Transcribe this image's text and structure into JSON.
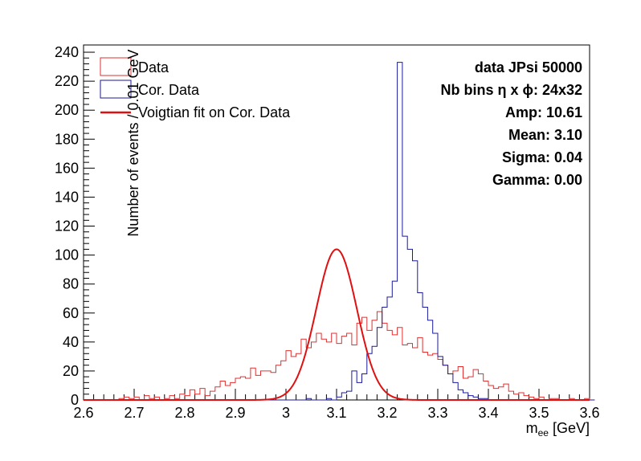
{
  "chart_data": {
    "type": "histogram",
    "xlabel_main": "m",
    "xlabel_sub": "ee",
    "xlabel_unit": " [GeV]",
    "ylabel": "Number of events / 0.01 GeV",
    "xlim": [
      2.6,
      3.6
    ],
    "ylim": [
      0,
      245
    ],
    "x_ticks": [
      "2.6",
      "2.7",
      "2.8",
      "2.9",
      "3",
      "3.1",
      "3.2",
      "3.3",
      "3.4",
      "3.5",
      "3.6"
    ],
    "y_ticks": [
      "0",
      "20",
      "40",
      "60",
      "80",
      "100",
      "120",
      "140",
      "160",
      "180",
      "200",
      "220",
      "240"
    ],
    "bin_width": 0.01,
    "bin_start": 2.6,
    "legend": [
      {
        "label": "Data",
        "color": "#e03030",
        "kind": "box"
      },
      {
        "label": "Cor. Data",
        "color": "#1a1a9a",
        "kind": "box"
      },
      {
        "label": "Voigtian fit on Cor. Data",
        "color": "#e01010",
        "kind": "line"
      }
    ],
    "stats": {
      "title": "data JPsi 50000",
      "bins_label": "Nb bins η x ϕ: 24x32",
      "amp": "Amp: 10.61",
      "mean": "Mean: 3.10",
      "sigma": "Sigma: 0.04",
      "gamma": "Gamma: 0.00"
    },
    "series": [
      {
        "name": "Data",
        "color": "#e03030",
        "values": [
          0,
          0,
          0,
          0,
          0,
          0,
          0,
          0,
          0,
          0,
          0,
          0,
          0,
          0,
          0,
          0,
          0,
          0,
          0,
          0,
          0,
          0,
          0,
          0,
          0,
          0,
          0,
          0,
          0,
          0,
          0,
          0,
          0,
          0,
          0,
          0,
          0,
          0,
          0,
          0,
          0,
          0,
          0,
          0,
          0,
          0,
          0,
          0,
          0,
          0,
          0,
          0,
          0,
          0,
          0,
          0,
          0,
          0,
          0,
          0,
          0,
          0,
          0,
          0,
          0,
          0,
          0,
          0,
          0,
          0,
          0,
          1,
          2,
          1,
          2,
          0,
          3,
          1,
          2,
          0,
          1,
          3,
          1,
          4,
          3,
          7,
          4,
          8,
          3,
          6,
          9,
          13,
          10,
          12,
          15,
          16,
          15,
          22,
          17,
          20,
          20,
          19,
          24,
          27,
          34,
          30,
          32,
          42,
          36,
          40,
          46,
          42,
          40,
          46,
          39,
          44,
          46,
          38,
          53,
          57,
          48,
          55,
          61,
          53,
          48,
          45,
          50,
          38,
          39,
          36,
          43,
          33,
          31,
          32,
          28,
          24,
          18,
          20,
          23,
          15,
          16,
          21,
          18,
          13,
          10,
          8,
          9,
          11,
          6,
          4,
          5,
          3,
          2,
          1,
          2,
          0,
          1,
          1,
          0,
          0,
          1,
          0,
          0,
          1,
          0,
          0,
          0,
          0,
          0,
          0,
          0,
          0,
          0,
          0,
          0,
          0,
          0,
          0,
          0,
          0,
          0,
          0,
          0,
          0,
          0,
          0,
          0,
          0,
          0,
          0,
          0,
          0,
          0,
          0,
          0,
          0,
          0,
          0,
          0,
          0,
          0,
          0,
          0,
          0,
          0,
          0,
          0,
          0,
          0,
          0,
          0,
          0,
          0,
          0,
          0,
          0,
          0,
          0,
          0,
          0
        ]
      },
      {
        "name": "Cor. Data",
        "color": "#1a1a9a",
        "values": [
          0,
          0,
          0,
          0,
          0,
          0,
          0,
          0,
          0,
          0,
          0,
          0,
          0,
          0,
          0,
          0,
          0,
          0,
          0,
          0,
          0,
          0,
          0,
          0,
          0,
          0,
          0,
          0,
          0,
          0,
          0,
          0,
          0,
          0,
          0,
          0,
          0,
          0,
          0,
          0,
          0,
          0,
          0,
          0,
          0,
          0,
          0,
          0,
          0,
          0,
          0,
          0,
          0,
          0,
          0,
          0,
          0,
          0,
          0,
          0,
          0,
          0,
          0,
          0,
          0,
          0,
          0,
          0,
          0,
          0,
          0,
          0,
          0,
          0,
          0,
          0,
          0,
          0,
          0,
          0,
          0,
          0,
          0,
          0,
          0,
          0,
          0,
          0,
          0,
          0,
          0,
          0,
          0,
          0,
          0,
          0,
          0,
          0,
          0,
          0,
          0,
          0,
          0,
          0,
          0,
          0,
          0,
          0,
          0,
          0,
          0,
          0,
          0,
          0,
          0,
          0,
          0,
          0,
          0,
          0,
          0,
          0,
          0,
          0,
          0,
          0,
          0,
          0,
          0,
          0,
          0,
          0,
          0,
          0,
          0,
          0,
          0,
          0,
          0,
          0,
          0,
          0,
          0,
          0,
          0,
          0,
          0,
          0,
          0,
          0,
          0,
          0,
          0,
          0,
          0,
          0,
          0,
          0,
          0,
          0,
          0,
          0,
          0,
          0,
          0,
          0,
          0,
          0,
          0,
          0,
          0,
          0,
          0,
          0,
          0,
          0,
          0,
          0,
          0,
          0,
          0,
          0,
          0,
          0,
          0,
          0,
          0,
          0,
          0,
          0,
          0,
          0,
          0,
          0,
          0,
          0,
          0,
          0,
          0,
          0,
          0,
          0,
          0,
          0,
          0,
          0,
          0,
          0,
          0,
          0,
          0,
          0,
          0,
          0,
          0,
          0,
          0,
          0,
          0,
          0
        ]
      }
    ],
    "data_hist": [
      0,
      0,
      0,
      0,
      0,
      0,
      0,
      1,
      2,
      1,
      2,
      0,
      3,
      1,
      2,
      0,
      1,
      3,
      1,
      4,
      3,
      7,
      4,
      8,
      3,
      6,
      9,
      13,
      10,
      12,
      15,
      16,
      15,
      22,
      17,
      20,
      20,
      19,
      24,
      27,
      34,
      30,
      32,
      42,
      36,
      40,
      46,
      42,
      40,
      46,
      39,
      44,
      46,
      38,
      53,
      57,
      48,
      55,
      61,
      53,
      48,
      45,
      50,
      38,
      39,
      36,
      43,
      33,
      31,
      32,
      28,
      24,
      18,
      20,
      23,
      15,
      16,
      21,
      18,
      13,
      10,
      8,
      9,
      11,
      6,
      4,
      5,
      3,
      2,
      1,
      2,
      0,
      1,
      1,
      0,
      0,
      1,
      0,
      0,
      1,
      0
    ],
    "cor_hist": [
      0,
      0,
      0,
      0,
      0,
      0,
      0,
      0,
      0,
      0,
      0,
      0,
      0,
      0,
      0,
      0,
      0,
      0,
      0,
      0,
      0,
      0,
      0,
      0,
      0,
      0,
      0,
      0,
      0,
      0,
      0,
      0,
      0,
      0,
      0,
      0,
      0,
      0,
      0,
      0,
      0,
      0,
      0,
      0,
      1,
      0,
      0,
      0,
      1,
      0,
      2,
      5,
      6,
      20,
      12,
      18,
      32,
      37,
      50,
      64,
      71,
      82,
      233,
      113,
      104,
      96,
      74,
      64,
      55,
      46,
      30,
      24,
      18,
      12,
      7,
      5,
      3,
      2,
      1,
      1,
      0,
      0,
      0,
      0,
      0,
      0,
      0,
      0,
      0,
      0,
      0,
      0,
      0,
      0,
      0,
      0,
      0,
      0,
      0,
      0,
      0
    ],
    "fit": {
      "amp_peak": 104,
      "mean": 3.1,
      "sigma": 0.04,
      "xmin": 2.6,
      "xmax": 3.6
    }
  }
}
